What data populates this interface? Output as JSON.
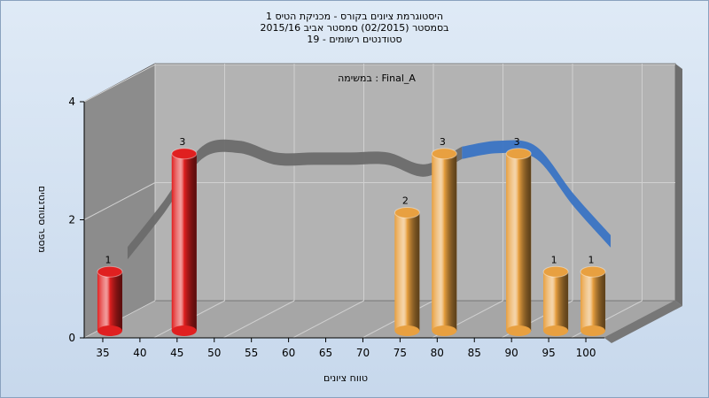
{
  "chart_data": {
    "type": "bar",
    "title_lines": [
      "היסטוגרמת ציונים בקורס - מכניקת הטיס 1",
      "בסמסטר  (02/2015)  סמסטר אביב 2015/16",
      "סטודנטים רשומים - 19"
    ],
    "annotation": "במשימה : Final_A",
    "xlabel": "טווח ציונים",
    "ylabel": "מספר סטודנטים",
    "x_ticks": [
      35,
      40,
      45,
      50,
      55,
      60,
      65,
      70,
      75,
      80,
      85,
      90,
      95,
      100
    ],
    "y_ticks": [
      0,
      2,
      4
    ],
    "ylim": [
      0,
      4
    ],
    "bars": [
      {
        "x": 35,
        "value": 1,
        "color": "#e02020"
      },
      {
        "x": 45,
        "value": 3,
        "color": "#e02020"
      },
      {
        "x": 75,
        "value": 2,
        "color": "#e8a040"
      },
      {
        "x": 80,
        "value": 3,
        "color": "#e8a040"
      },
      {
        "x": 90,
        "value": 3,
        "color": "#e8a040"
      },
      {
        "x": 95,
        "value": 1,
        "color": "#e8a040"
      },
      {
        "x": 100,
        "value": 1,
        "color": "#e8a040"
      }
    ],
    "trend_curve": {
      "x": [
        35,
        40,
        45,
        50,
        55,
        60,
        65,
        70,
        75,
        80,
        85,
        90,
        95,
        100
      ],
      "y": [
        1.3,
        2.1,
        3.0,
        3.1,
        2.9,
        2.9,
        2.9,
        2.9,
        2.7,
        3.0,
        3.1,
        3.0,
        2.2,
        1.5
      ],
      "gray_color": "#6c6c6c",
      "blue_color": "#3a74c4"
    },
    "wall_color": "#b0b0b0",
    "legend": "none"
  }
}
